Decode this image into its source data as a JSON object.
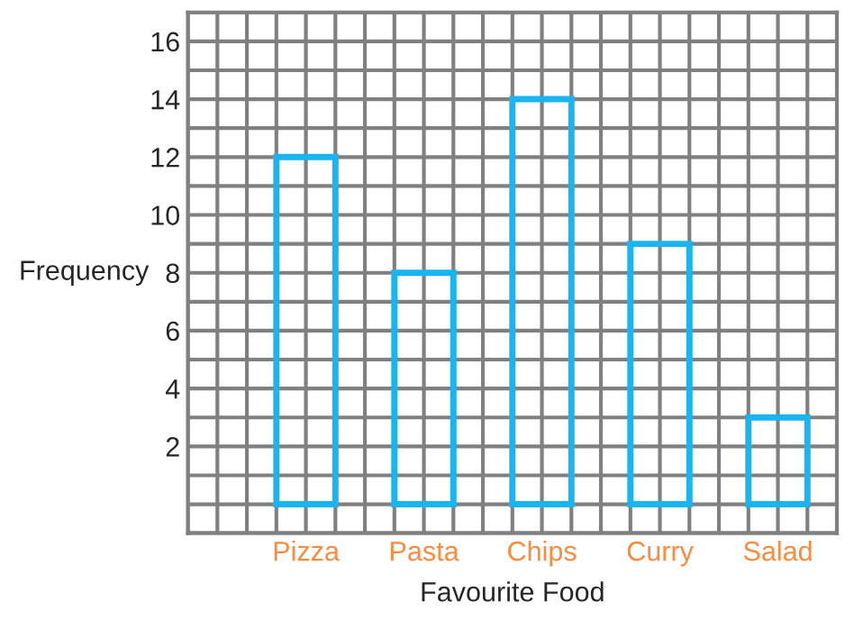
{
  "chart_data": {
    "type": "bar",
    "xlabel": "Favourite Food",
    "ylabel": "Frequency",
    "categories": [
      "Pizza",
      "Pasta",
      "Chips",
      "Curry",
      "Salad"
    ],
    "values": [
      12,
      8,
      14,
      9,
      3
    ],
    "color": "#1ab4f0",
    "grid": true,
    "ylim": [
      -1,
      17
    ],
    "yticks": [
      2,
      4,
      6,
      8,
      10,
      12,
      14,
      16
    ]
  }
}
